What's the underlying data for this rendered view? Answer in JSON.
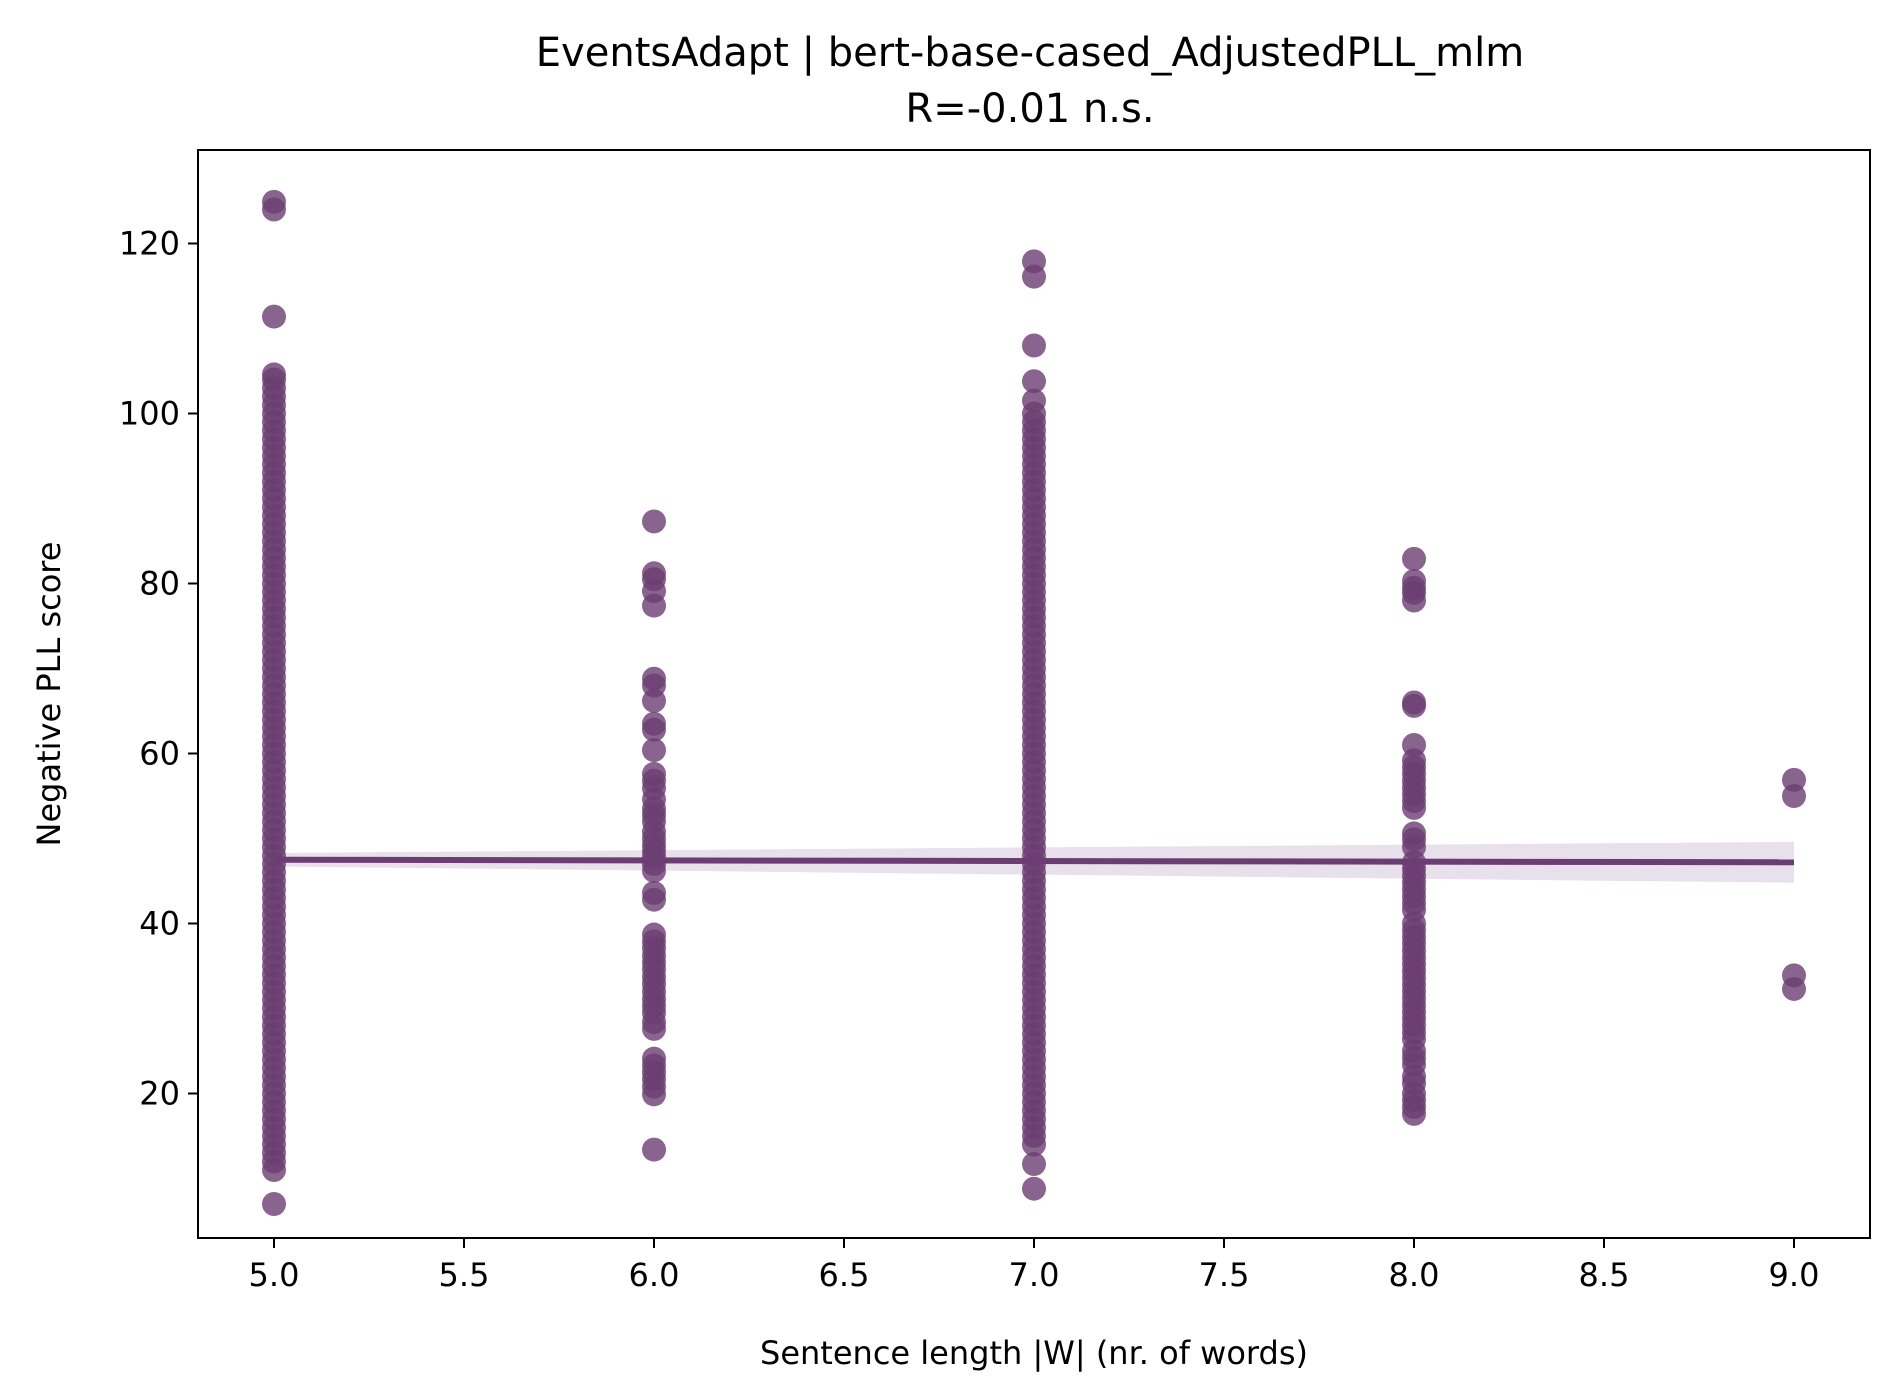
{
  "chart_data": {
    "type": "scatter",
    "title": "EventsAdapt | bert-base-cased_AdjustedPLL_mlm",
    "subtitle": "R=-0.01 n.s.",
    "xlabel": "Sentence length |W| (nr. of words)",
    "ylabel": "Negative PLL score",
    "xlim": [
      4.8,
      9.2
    ],
    "ylim": [
      3,
      131
    ],
    "xticks": [
      5.0,
      5.5,
      6.0,
      6.5,
      7.0,
      7.5,
      8.0,
      8.5,
      9.0
    ],
    "xtick_labels": [
      "5.0",
      "5.5",
      "6.0",
      "6.5",
      "7.0",
      "7.5",
      "8.0",
      "8.5",
      "9.0"
    ],
    "yticks": [
      20,
      40,
      60,
      80,
      100,
      120
    ],
    "ytick_labels": [
      "20",
      "40",
      "60",
      "80",
      "100",
      "120"
    ],
    "grid": false,
    "legend": "none",
    "color": "#6b3d72",
    "band_color": "#e6dde8",
    "regression": {
      "x": [
        5.0,
        9.0
      ],
      "y": [
        47.5,
        47.2
      ],
      "ci_lower": [
        46.7,
        44.8
      ],
      "ci_upper": [
        48.3,
        49.6
      ]
    },
    "points": [
      {
        "x": 5.0,
        "y": [
          124.9,
          124.0,
          111.4,
          104.6,
          104.0,
          103.0,
          102.0,
          101.0,
          100.0,
          99.0,
          98.0,
          97.0,
          96.0,
          95.0,
          94.0,
          93.0,
          92.0,
          91.0,
          90.0,
          89.0,
          88.0,
          87.0,
          86.0,
          85.0,
          84.0,
          83.0,
          82.0,
          81.0,
          80.0,
          79.0,
          78.0,
          77.0,
          76.0,
          75.0,
          74.0,
          73.0,
          72.0,
          71.0,
          70.0,
          69.0,
          68.0,
          67.0,
          66.0,
          65.0,
          64.0,
          63.0,
          62.0,
          61.0,
          60.0,
          59.0,
          58.0,
          57.0,
          56.0,
          55.0,
          54.0,
          53.0,
          52.0,
          51.0,
          50.0,
          49.0,
          48.0,
          47.0,
          46.0,
          45.0,
          44.0,
          43.0,
          42.0,
          41.0,
          40.0,
          39.0,
          38.0,
          37.0,
          36.0,
          35.0,
          34.0,
          33.0,
          32.0,
          31.0,
          30.0,
          29.0,
          28.0,
          27.0,
          26.0,
          25.0,
          24.0,
          23.0,
          22.0,
          21.0,
          20.0,
          19.0,
          18.0,
          17.0,
          16.0,
          15.0,
          14.0,
          13.0,
          12.0,
          11.0,
          7.0
        ]
      },
      {
        "x": 6.0,
        "y": [
          87.3,
          81.2,
          80.5,
          79.1,
          77.4,
          68.8,
          68.0,
          66.2,
          63.5,
          62.8,
          60.4,
          57.6,
          56.8,
          55.9,
          54.6,
          53.5,
          52.8,
          52.0,
          50.8,
          50.0,
          49.2,
          48.5,
          47.8,
          47.0,
          46.2,
          43.6,
          42.8,
          38.7,
          37.9,
          37.1,
          36.2,
          35.4,
          34.6,
          33.7,
          32.9,
          32.0,
          31.1,
          30.3,
          29.5,
          28.4,
          27.6,
          24.1,
          23.3,
          22.5,
          21.7,
          20.8,
          19.9,
          13.4
        ]
      },
      {
        "x": 7.0,
        "y": [
          117.9,
          116.1,
          108.0,
          103.8,
          101.5,
          100.0,
          99.0,
          98.0,
          97.0,
          96.0,
          95.0,
          94.0,
          93.0,
          92.0,
          91.0,
          90.0,
          89.0,
          88.0,
          87.0,
          86.0,
          85.0,
          84.0,
          83.0,
          82.0,
          81.0,
          80.0,
          79.0,
          78.0,
          77.0,
          76.0,
          75.0,
          74.0,
          73.0,
          72.0,
          71.0,
          70.0,
          69.0,
          68.0,
          67.0,
          66.0,
          65.0,
          64.0,
          63.0,
          62.0,
          61.0,
          60.0,
          59.0,
          58.0,
          57.0,
          56.0,
          55.0,
          54.0,
          53.0,
          52.0,
          51.0,
          50.0,
          49.0,
          48.0,
          47.0,
          46.0,
          45.0,
          44.0,
          43.0,
          42.0,
          41.0,
          40.0,
          39.0,
          38.0,
          37.0,
          36.0,
          35.0,
          34.0,
          33.0,
          32.0,
          31.0,
          30.0,
          29.0,
          28.0,
          27.0,
          26.0,
          25.0,
          24.0,
          23.0,
          22.0,
          21.0,
          20.0,
          19.0,
          18.0,
          17.0,
          16.0,
          15.0,
          14.0,
          11.7,
          8.8
        ]
      },
      {
        "x": 8.0,
        "y": [
          82.9,
          80.3,
          79.5,
          78.9,
          78.0,
          66.0,
          65.6,
          61.0,
          59.2,
          58.4,
          57.6,
          56.8,
          56.0,
          55.2,
          54.4,
          53.6,
          50.6,
          49.9,
          49.0,
          47.2,
          46.4,
          45.6,
          44.8,
          44.0,
          43.2,
          42.4,
          41.6,
          40.0,
          39.2,
          38.4,
          37.6,
          36.8,
          36.0,
          35.2,
          34.4,
          33.6,
          32.8,
          32.0,
          31.2,
          30.4,
          29.6,
          28.8,
          28.0,
          27.2,
          26.4,
          25.0,
          24.2,
          23.4,
          22.0,
          21.2,
          20.0,
          19.2,
          18.4,
          17.6
        ]
      },
      {
        "x": 9.0,
        "y": [
          56.9,
          55.0,
          33.9,
          32.3
        ]
      }
    ]
  }
}
